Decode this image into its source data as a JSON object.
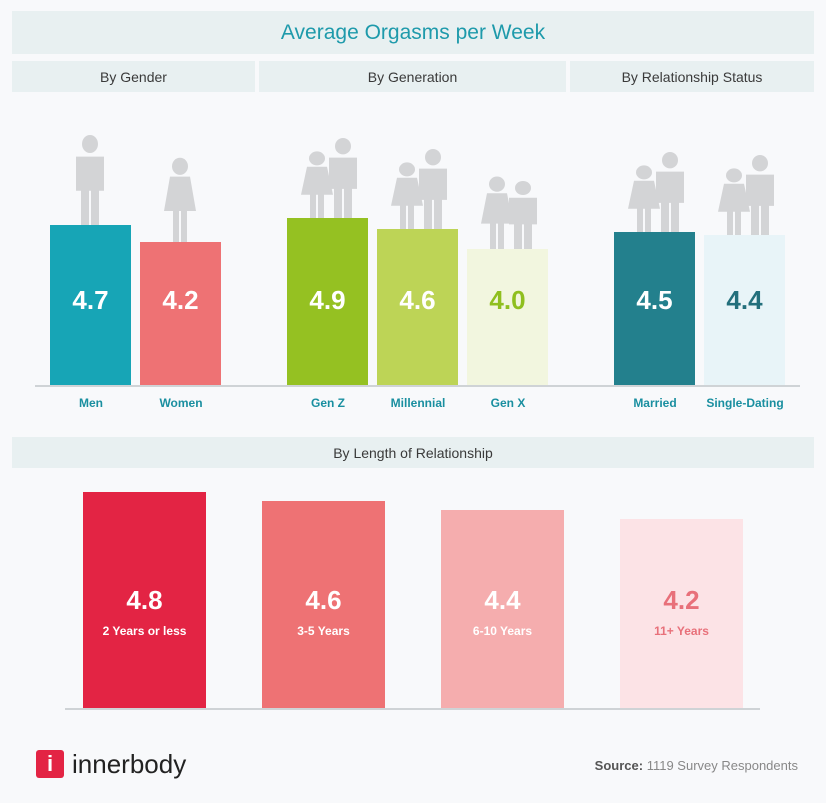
{
  "title": "Average Orgasms per Week",
  "chart_data": [
    {
      "type": "bar",
      "title": "By Gender",
      "categories": [
        "Men",
        "Women"
      ],
      "values": [
        4.7,
        4.2
      ],
      "colors": [
        "#17a5b6",
        "#ee7274"
      ],
      "value_colors": [
        "#ffffff",
        "#ffffff"
      ]
    },
    {
      "type": "bar",
      "title": "By Generation",
      "categories": [
        "Gen Z",
        "Millennial",
        "Gen X"
      ],
      "values": [
        4.9,
        4.6,
        4.0
      ],
      "colors": [
        "#95c122",
        "#bdd456",
        "#f2f6df"
      ],
      "value_colors": [
        "#ffffff",
        "#ffffff",
        "#8fbf1f"
      ]
    },
    {
      "type": "bar",
      "title": "By Relationship Status",
      "categories": [
        "Married",
        "Single-Dating"
      ],
      "values": [
        4.5,
        4.4
      ],
      "colors": [
        "#23808d",
        "#e8f4f8"
      ],
      "value_colors": [
        "#ffffff",
        "#236f7c"
      ]
    },
    {
      "type": "bar",
      "title": "By Length of Relationship",
      "categories": [
        "2 Years or less",
        "3-5 Years",
        "6-10 Years",
        "11+ Years"
      ],
      "values": [
        4.8,
        4.6,
        4.4,
        4.2
      ],
      "colors": [
        "#e32444",
        "#ee7274",
        "#f5adae",
        "#fce3e6"
      ],
      "value_colors": [
        "#ffffff",
        "#ffffff",
        "#ffffff",
        "#e8707a"
      ]
    }
  ],
  "footer": {
    "brand": "innerbody",
    "source_label": "Source:",
    "source_text": "1119 Survey Respondents"
  }
}
